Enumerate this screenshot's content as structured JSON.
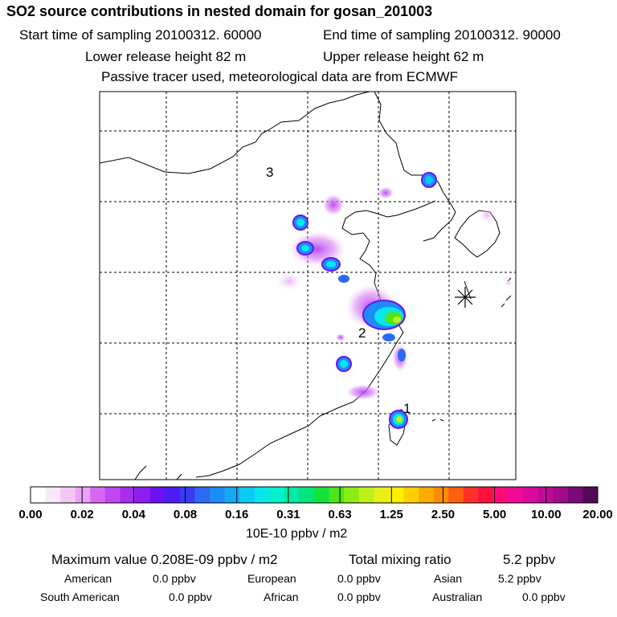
{
  "header": {
    "title": "SO2 source contributions in nested domain for gosan_201003",
    "start": "Start time of sampling 20100312. 60000",
    "end": "End time of sampling 20100312. 90000",
    "lower": "Lower release height   82 m",
    "upper": "Upper release height   62 m",
    "tracer": "Passive tracer used, meteorological data are from ECMWF"
  },
  "chart_data": {
    "type": "heatmap",
    "title": "SO2 source contributions in nested domain for gosan_201003",
    "colorbar": {
      "tick_labels": [
        "0.00",
        "0.02",
        "0.04",
        "0.08",
        "0.16",
        "0.31",
        "0.63",
        "1.25",
        "2.50",
        "5.00",
        "10.00",
        "20.00"
      ],
      "colors": [
        "#ffffff",
        "#fbe8fb",
        "#f3c8f6",
        "#eaa3f6",
        "#d768f4",
        "#c246f2",
        "#a82cee",
        "#8f1cf0",
        "#6a12f2",
        "#4d1cf2",
        "#3b3cf2",
        "#2a6af4",
        "#1d8cf6",
        "#12aaf6",
        "#0ccaf2",
        "#08e6ec",
        "#00f2cc",
        "#00eaa6",
        "#00e47c",
        "#14e23c",
        "#4ce61a",
        "#8cec14",
        "#c0f01a",
        "#e8f01a",
        "#fff000",
        "#ffd000",
        "#ffac00",
        "#ff8c00",
        "#ff6010",
        "#ff3024",
        "#ff1040",
        "#ff0a7a",
        "#f00a96",
        "#d80a9c",
        "#be0a98",
        "#a00a8c",
        "#7a0a78",
        "#520a58"
      ],
      "units": "10E-10 ppbv / m2"
    },
    "site_labels": [
      "1",
      "2",
      "3"
    ],
    "receptor_symbol": "receptor-star"
  },
  "summary": {
    "max_label": "Maximum value  0.208E-09 ppbv / m2",
    "total_label": "Total mixing ratio",
    "total_value": "5.2 ppbv",
    "regions": [
      {
        "name": "American",
        "value": "0.0 ppbv"
      },
      {
        "name": "European",
        "value": "0.0 ppbv"
      },
      {
        "name": "Asian",
        "value": "5.2 ppbv"
      },
      {
        "name": "South American",
        "value": "0.0 ppbv"
      },
      {
        "name": "African",
        "value": "0.0 ppbv"
      },
      {
        "name": "Australian",
        "value": "0.0 ppbv"
      }
    ]
  }
}
